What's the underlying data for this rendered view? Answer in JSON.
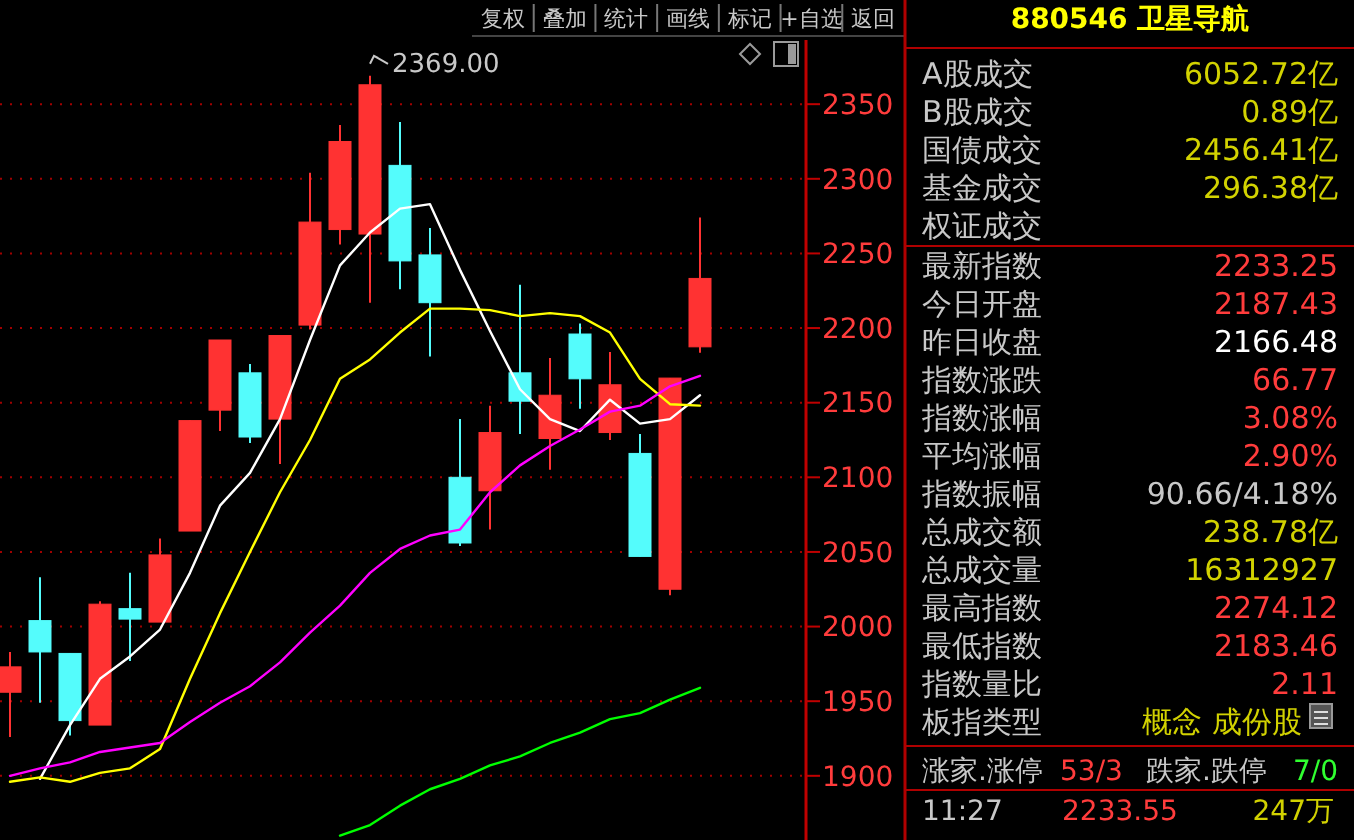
{
  "chart_data": [
    {
      "type": "candlestick",
      "categories": [
        null,
        null,
        null,
        null,
        null,
        null,
        null,
        null,
        null,
        null,
        null,
        null,
        null,
        null,
        null,
        null,
        null,
        null,
        null,
        null,
        null,
        null,
        null,
        null
      ],
      "ohlc": [
        [
          1956,
          1983,
          1926,
          1973
        ],
        [
          2004,
          2033,
          1949,
          1983
        ],
        [
          1982,
          1982,
          1927,
          1937
        ],
        [
          1934,
          2017,
          1934,
          2015
        ],
        [
          2012,
          2036,
          1977,
          2005
        ],
        [
          2003,
          2059,
          2003,
          2048
        ],
        [
          2064,
          2138,
          2064,
          2138
        ],
        [
          2145,
          2192,
          2131,
          2192
        ],
        [
          2170,
          2176,
          2123,
          2127
        ],
        [
          2139,
          2195,
          2109,
          2195
        ],
        [
          2202,
          2304,
          2199,
          2271
        ],
        [
          2266,
          2336,
          2256,
          2325
        ],
        [
          2263,
          2369,
          2217,
          2363
        ],
        [
          2309,
          2338,
          2226,
          2245
        ],
        [
          2249,
          2267,
          2181,
          2217
        ],
        [
          2100,
          2139,
          2054,
          2056
        ],
        [
          2091,
          2148,
          2065,
          2130
        ],
        [
          2170,
          2229,
          2129,
          2151
        ],
        [
          2126,
          2180,
          2105,
          2155
        ],
        [
          2196,
          2203,
          2146,
          2166
        ],
        [
          2130,
          2184,
          2125,
          2162
        ],
        [
          2116,
          2129,
          2047,
          2047
        ],
        [
          2025,
          2166.48,
          2021,
          2166.48
        ],
        [
          2187.43,
          2274.12,
          2183.46,
          2233.25
        ]
      ],
      "colors": [
        "#ff3232",
        "#54fcfc",
        "#54fcfc",
        "#ff3232",
        "#54fcfc",
        "#ff3232",
        "#ff3232",
        "#ff3232",
        "#54fcfc",
        "#ff3232",
        "#ff3232",
        "#ff3232",
        "#ff3232",
        "#54fcfc",
        "#54fcfc",
        "#54fcfc",
        "#ff3232",
        "#54fcfc",
        "#ff3232",
        "#54fcfc",
        "#ff3232",
        "#54fcfc",
        "#ff3232",
        "#ff3232"
      ],
      "series": [
        {
          "type": "line",
          "color": "#ffffff",
          "values": [
            null,
            1898,
            1934,
            1965,
            1980,
            1998,
            2036,
            2081,
            2103,
            2139,
            2192,
            2242,
            2264,
            2280,
            2283,
            2239,
            2198,
            2159,
            2139,
            2131,
            2152,
            2136,
            2139,
            2155
          ]
        },
        {
          "type": "line",
          "color": "#ffff00",
          "values": [
            1896,
            1899,
            1896,
            1902,
            1905,
            1918,
            1965,
            2009,
            2050,
            2090,
            2125,
            2166,
            2179,
            2197,
            2213,
            2213,
            2212,
            2208,
            2210,
            2208,
            2197,
            2166,
            2149,
            2148
          ]
        },
        {
          "type": "line",
          "color": "#ff00ff",
          "values": [
            1900,
            1905,
            1909,
            1916,
            1919,
            1922,
            1936,
            1949,
            1960,
            1976,
            1996,
            2014,
            2036,
            2052,
            2061,
            2065,
            2090,
            2108,
            2121,
            2132,
            2144,
            2148,
            2161,
            2168
          ]
        },
        {
          "type": "line",
          "color": "#00ff00",
          "values": [
            null,
            null,
            null,
            null,
            null,
            null,
            null,
            null,
            null,
            null,
            null,
            1860,
            1867,
            1880,
            1891,
            1898,
            1907,
            1913,
            1922,
            1929,
            1938,
            1942,
            1951,
            1959
          ]
        }
      ],
      "ylim": [
        1857,
        2393
      ],
      "yticks": [
        1900,
        1950,
        2000,
        2050,
        2100,
        2150,
        2200,
        2250,
        2300,
        2350
      ],
      "grid": "y",
      "annotations": [
        "2369.00"
      ]
    },
    {
      "type": "other",
      "annotations": [
        "复权",
        "叠加",
        "统计",
        "画线",
        "标记",
        "+自选",
        "返回"
      ]
    },
    {
      "type": "other",
      "title": "880546 卫星导航",
      "annotations": [
        "A股成交",
        "6052.72亿",
        "B股成交",
        "0.89亿",
        "国债成交",
        "2456.41亿",
        "基金成交",
        "296.38亿",
        "权证成交",
        "最新指数",
        "2233.25",
        "今日开盘",
        "2187.43",
        "昨日收盘",
        "2166.48",
        "指数涨跌",
        "66.77",
        "指数涨幅",
        "3.08%",
        "平均涨幅",
        "2.90%",
        "指数振幅",
        "90.66/4.18%",
        "总成交额",
        "238.78亿",
        "总成交量",
        "16312927",
        "最高指数",
        "2274.12",
        "最低指数",
        "2183.46",
        "指数量比",
        "2.11",
        "板指类型",
        "概念 成份股",
        "涨家.涨停",
        "53/3",
        "跌家.跌停",
        "7/0",
        "11:27",
        "2233.55",
        "247万"
      ]
    }
  ]
}
